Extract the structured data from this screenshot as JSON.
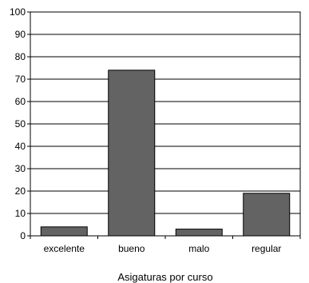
{
  "chart_data": {
    "type": "bar",
    "categories": [
      "excelente",
      "bueno",
      "malo",
      "regular"
    ],
    "values": [
      4,
      74,
      3,
      19
    ],
    "title": "",
    "xlabel": "Asigaturas por curso",
    "ylabel": "",
    "ylim": [
      0,
      100
    ],
    "yticks": [
      0,
      10,
      20,
      30,
      40,
      50,
      60,
      70,
      80,
      90,
      100
    ],
    "grid": true,
    "bar_color": "#636363",
    "grid_color": "#000000"
  }
}
